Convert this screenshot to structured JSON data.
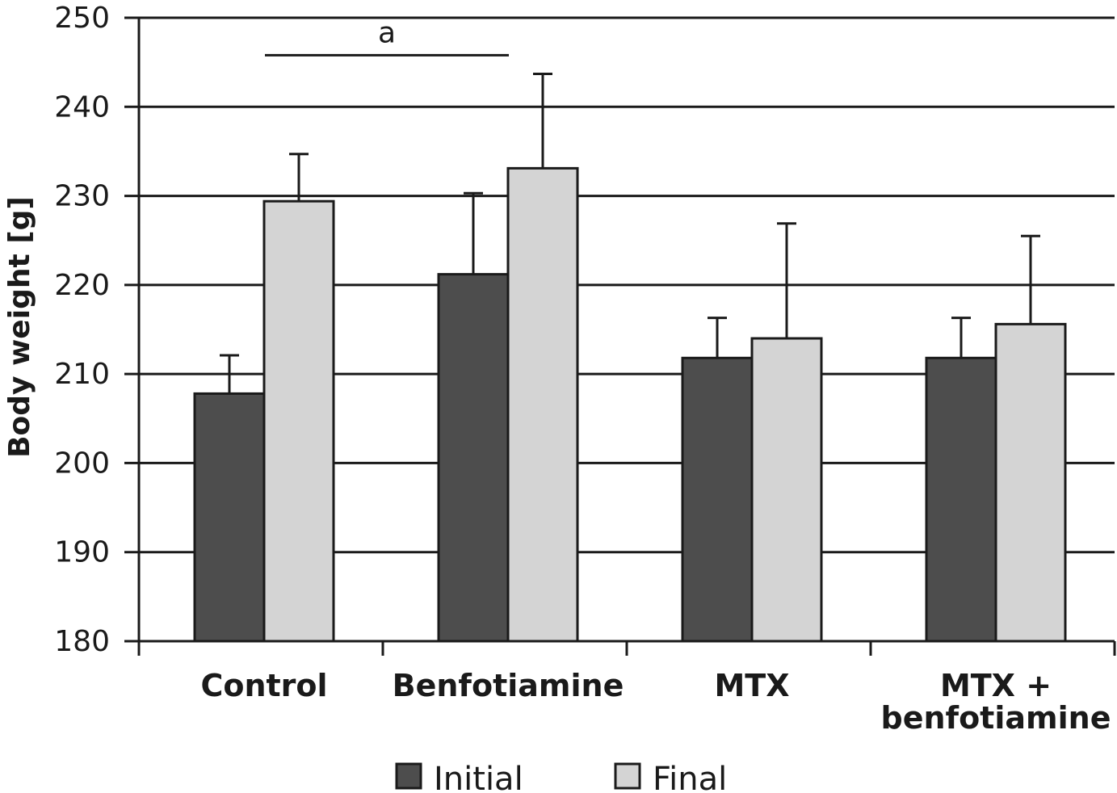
{
  "chart_data": {
    "type": "bar",
    "ylabel": "Body weight [g]",
    "ylim": [
      180,
      250
    ],
    "yticks": [
      "180",
      "190",
      "200",
      "210",
      "220",
      "230",
      "240",
      "250"
    ],
    "categories": [
      [
        "Control"
      ],
      [
        "Benfotiamine"
      ],
      [
        "MTX"
      ],
      [
        "MTX +",
        "benfotiamine"
      ]
    ],
    "series": [
      {
        "name": "Initial",
        "color": "#4d4d4d",
        "values": [
          207.8,
          221.2,
          211.8,
          211.8
        ],
        "errors": [
          4.3,
          9.1,
          4.5,
          4.5
        ]
      },
      {
        "name": "Final",
        "color": "#d4d4d4",
        "values": [
          229.4,
          233.1,
          214.0,
          215.6
        ],
        "errors": [
          5.3,
          10.6,
          12.9,
          9.9
        ]
      }
    ],
    "grid": true,
    "legend": "bottom",
    "annotations": [
      {
        "text": "a",
        "from_category": 0,
        "to_category": 1,
        "y": 245.8
      }
    ]
  }
}
